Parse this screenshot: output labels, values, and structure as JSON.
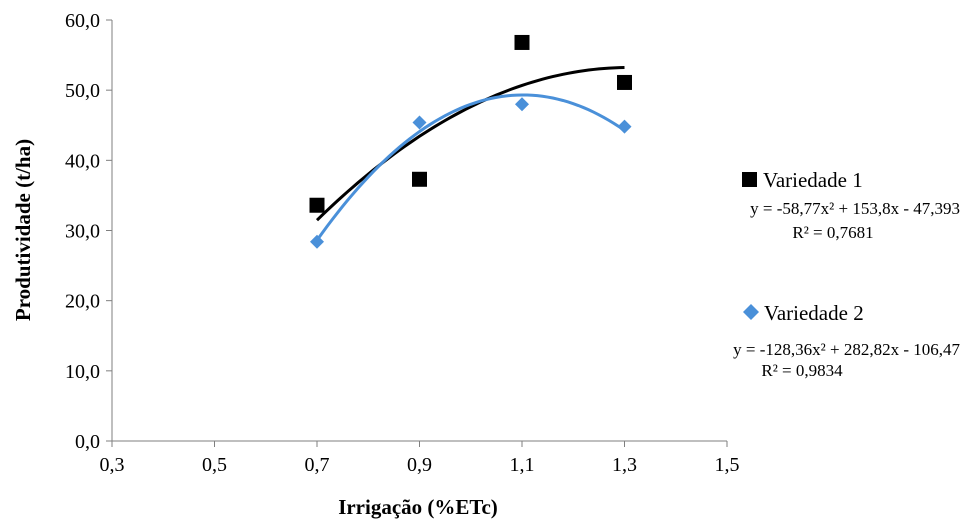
{
  "chart_data": {
    "type": "scatter",
    "xlabel": "Irrigação (%ETc)",
    "ylabel": "Produtividade (t/ha)",
    "xlim": [
      0.3,
      1.5
    ],
    "ylim": [
      0,
      60
    ],
    "x_ticks": [
      "0,3",
      "0,5",
      "0,7",
      "0,9",
      "1,1",
      "1,3",
      "1,5"
    ],
    "y_ticks": [
      "0,0",
      "10,0",
      "20,0",
      "30,0",
      "40,0",
      "50,0",
      "60,0"
    ],
    "grid": false,
    "legend_position": "right",
    "series": [
      {
        "name": "Variedade 1",
        "marker": "square",
        "color": "#000000",
        "x": [
          0.7,
          0.9,
          1.1,
          1.3
        ],
        "y": [
          33.6,
          37.3,
          56.8,
          51.1
        ],
        "trendline": {
          "type": "polynomial",
          "coefficients": [
            -58.77,
            153.8,
            -47.393
          ]
        },
        "equation": "y = -58,77x² + 153,8x - 47,393",
        "r2": "R² = 0,7681"
      },
      {
        "name": "Variedade 2",
        "marker": "diamond",
        "color": "#4a90d9",
        "x": [
          0.7,
          0.9,
          1.1,
          1.3
        ],
        "y": [
          28.4,
          45.4,
          48.0,
          44.8
        ],
        "trendline": {
          "type": "polynomial",
          "coefficients": [
            -128.36,
            282.82,
            -106.47
          ]
        },
        "equation": "y = -128,36x² + 282,82x - 106,47",
        "r2": "R² = 0,9834"
      }
    ]
  }
}
